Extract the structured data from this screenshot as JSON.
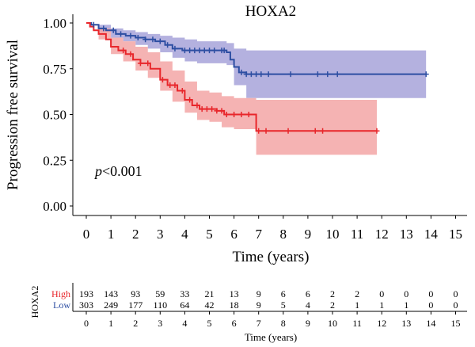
{
  "chart_data": [
    {
      "type": "line",
      "subtype": "kaplan-meier",
      "title": "HOXA2",
      "xlabel": "Time (years)",
      "ylabel": "Progression free survival",
      "xlim": [
        0,
        15
      ],
      "ylim": [
        0,
        1
      ],
      "x_ticks": [
        "0",
        "1",
        "2",
        "3",
        "4",
        "5",
        "6",
        "7",
        "8",
        "9",
        "10",
        "11",
        "12",
        "13",
        "14",
        "15"
      ],
      "y_ticks": [
        "0.00",
        "0.25",
        "0.50",
        "0.75",
        "1.00"
      ],
      "annotation": {
        "p_label": "p",
        "p_value": "<0.001"
      },
      "grid": false,
      "series": [
        {
          "name": "High",
          "color": "#e8262b",
          "band_color": "#f3a6a6",
          "steps": [
            [
              0,
              1.0
            ],
            [
              0.15,
              0.98
            ],
            [
              0.3,
              0.96
            ],
            [
              0.5,
              0.94
            ],
            [
              0.8,
              0.91
            ],
            [
              1.0,
              0.87
            ],
            [
              1.3,
              0.85
            ],
            [
              1.6,
              0.83
            ],
            [
              1.9,
              0.8
            ],
            [
              2.2,
              0.78
            ],
            [
              2.6,
              0.75
            ],
            [
              3.0,
              0.69
            ],
            [
              3.3,
              0.66
            ],
            [
              3.7,
              0.63
            ],
            [
              4.0,
              0.58
            ],
            [
              4.3,
              0.55
            ],
            [
              4.6,
              0.53
            ],
            [
              5.0,
              0.53
            ],
            [
              5.3,
              0.52
            ],
            [
              5.6,
              0.5
            ],
            [
              6.0,
              0.5
            ],
            [
              6.5,
              0.5
            ],
            [
              6.9,
              0.41
            ],
            [
              11.8,
              0.41
            ]
          ],
          "lower": [
            [
              0,
              1.0
            ],
            [
              0.5,
              0.91
            ],
            [
              1.0,
              0.83
            ],
            [
              1.5,
              0.79
            ],
            [
              2.0,
              0.74
            ],
            [
              2.5,
              0.7
            ],
            [
              3.0,
              0.63
            ],
            [
              3.5,
              0.57
            ],
            [
              4.0,
              0.51
            ],
            [
              4.5,
              0.47
            ],
            [
              5.0,
              0.46
            ],
            [
              5.5,
              0.43
            ],
            [
              6.0,
              0.42
            ],
            [
              6.5,
              0.42
            ],
            [
              6.9,
              0.28
            ],
            [
              11.8,
              0.28
            ]
          ],
          "upper": [
            [
              0,
              1.0
            ],
            [
              0.5,
              0.97
            ],
            [
              1.0,
              0.92
            ],
            [
              1.5,
              0.9
            ],
            [
              2.0,
              0.87
            ],
            [
              2.5,
              0.84
            ],
            [
              3.0,
              0.79
            ],
            [
              3.5,
              0.74
            ],
            [
              4.0,
              0.68
            ],
            [
              4.5,
              0.63
            ],
            [
              5.0,
              0.62
            ],
            [
              5.5,
              0.6
            ],
            [
              6.0,
              0.59
            ],
            [
              6.5,
              0.59
            ],
            [
              6.9,
              0.58
            ],
            [
              11.8,
              0.58
            ]
          ],
          "censor_times": [
            1.5,
            1.8,
            2.2,
            2.5,
            3.1,
            3.4,
            3.6,
            3.9,
            4.2,
            4.5,
            4.7,
            4.9,
            5.1,
            5.3,
            5.5,
            5.7,
            6.0,
            6.3,
            6.6,
            7.0,
            7.3,
            8.2,
            9.3,
            9.6,
            11.8
          ]
        },
        {
          "name": "Low",
          "color": "#2d4ea2",
          "band_color": "#a7a3d9",
          "steps": [
            [
              0,
              1.0
            ],
            [
              0.2,
              0.99
            ],
            [
              0.5,
              0.97
            ],
            [
              0.8,
              0.96
            ],
            [
              1.2,
              0.94
            ],
            [
              1.6,
              0.93
            ],
            [
              2.0,
              0.92
            ],
            [
              2.4,
              0.91
            ],
            [
              2.8,
              0.9
            ],
            [
              3.2,
              0.88
            ],
            [
              3.5,
              0.86
            ],
            [
              3.9,
              0.85
            ],
            [
              4.3,
              0.85
            ],
            [
              5.0,
              0.85
            ],
            [
              5.7,
              0.84
            ],
            [
              5.85,
              0.8
            ],
            [
              6.0,
              0.76
            ],
            [
              6.2,
              0.73
            ],
            [
              6.5,
              0.72
            ],
            [
              13.8,
              0.72
            ]
          ],
          "lower": [
            [
              0,
              1.0
            ],
            [
              0.5,
              0.95
            ],
            [
              1.0,
              0.92
            ],
            [
              1.5,
              0.9
            ],
            [
              2.0,
              0.88
            ],
            [
              2.5,
              0.86
            ],
            [
              3.0,
              0.84
            ],
            [
              3.5,
              0.81
            ],
            [
              4.0,
              0.79
            ],
            [
              4.5,
              0.78
            ],
            [
              5.0,
              0.78
            ],
            [
              5.7,
              0.77
            ],
            [
              6.0,
              0.66
            ],
            [
              6.5,
              0.59
            ],
            [
              13.8,
              0.59
            ]
          ],
          "upper": [
            [
              0,
              1.0
            ],
            [
              0.5,
              0.99
            ],
            [
              1.0,
              0.97
            ],
            [
              1.5,
              0.96
            ],
            [
              2.0,
              0.95
            ],
            [
              2.5,
              0.94
            ],
            [
              3.0,
              0.93
            ],
            [
              3.5,
              0.92
            ],
            [
              4.0,
              0.91
            ],
            [
              4.5,
              0.9
            ],
            [
              5.0,
              0.9
            ],
            [
              5.7,
              0.89
            ],
            [
              6.0,
              0.86
            ],
            [
              6.5,
              0.85
            ],
            [
              13.8,
              0.85
            ]
          ],
          "censor_times": [
            0.3,
            0.7,
            1.1,
            1.4,
            1.8,
            2.1,
            2.4,
            2.7,
            3.0,
            3.3,
            3.6,
            4.0,
            4.2,
            4.4,
            4.6,
            4.8,
            5.0,
            5.2,
            5.5,
            5.6,
            6.3,
            6.5,
            6.7,
            6.9,
            7.1,
            7.4,
            8.3,
            9.4,
            9.8,
            10.2,
            13.8
          ]
        }
      ]
    },
    {
      "type": "table",
      "title": "",
      "row_header": "HOXA2",
      "xlabel": "Time (years)",
      "columns": [
        "0",
        "1",
        "2",
        "3",
        "4",
        "5",
        "6",
        "7",
        "8",
        "9",
        "10",
        "11",
        "12",
        "13",
        "14",
        "15"
      ],
      "rows": [
        {
          "name": "High",
          "color": "#e8262b",
          "values": [
            "193",
            "143",
            "93",
            "59",
            "33",
            "21",
            "13",
            "9",
            "6",
            "6",
            "2",
            "2",
            "0",
            "0",
            "0",
            "0"
          ]
        },
        {
          "name": "Low",
          "color": "#2d4ea2",
          "values": [
            "303",
            "249",
            "177",
            "110",
            "64",
            "42",
            "18",
            "9",
            "5",
            "4",
            "2",
            "1",
            "1",
            "1",
            "0",
            "0"
          ]
        }
      ]
    }
  ]
}
